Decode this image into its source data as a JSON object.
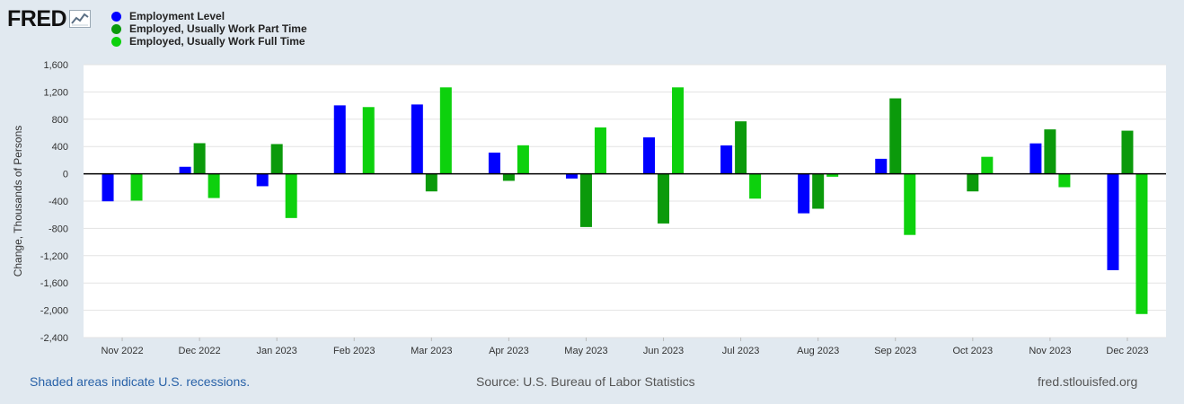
{
  "logo": {
    "text": "FRED",
    "icon": "line-chart-icon"
  },
  "chart_data": {
    "type": "bar",
    "ylabel": "Change, Thousands of Persons",
    "xlabel": "",
    "ylim": [
      -2400,
      1600
    ],
    "yticks": [
      1600,
      1200,
      800,
      400,
      0,
      -400,
      -800,
      -1200,
      -1600,
      -2000,
      -2400
    ],
    "ytick_labels": [
      "1,600",
      "1,200",
      "800",
      "400",
      "0",
      "-400",
      "-800",
      "-1,200",
      "-1,600",
      "-2,000",
      "-2,400"
    ],
    "grid": true,
    "legend_position": "top-left",
    "categories": [
      "Nov 2022",
      "Dec 2022",
      "Jan 2023",
      "Feb 2023",
      "Mar 2023",
      "Apr 2023",
      "May 2023",
      "Jun 2023",
      "Jul 2023",
      "Aug 2023",
      "Sep 2023",
      "Oct 2023",
      "Nov 2023",
      "Dec 2023"
    ],
    "series": [
      {
        "name": "Employment Level",
        "color": "#0000ff",
        "values": [
          -403,
          103,
          -182,
          1003,
          1016,
          311,
          -69,
          534,
          416,
          -579,
          220,
          0,
          446,
          -1412
        ]
      },
      {
        "name": "Employed, Usually Work Part Time",
        "color": "#0b9a0b",
        "values": [
          0,
          449,
          436,
          0,
          -258,
          -103,
          -780,
          -728,
          769,
          -512,
          1106,
          -258,
          651,
          632
        ]
      },
      {
        "name": "Employed, Usually Work Full Time",
        "color": "#0dd10d",
        "values": [
          -393,
          -355,
          -648,
          978,
          1267,
          418,
          680,
          1267,
          -364,
          -43,
          -896,
          249,
          -196,
          -2055
        ]
      }
    ]
  },
  "footer": {
    "recessions": "Shaded areas indicate U.S. recessions.",
    "source": "Source: U.S. Bureau of Labor Statistics",
    "site": "fred.stlouisfed.org"
  }
}
